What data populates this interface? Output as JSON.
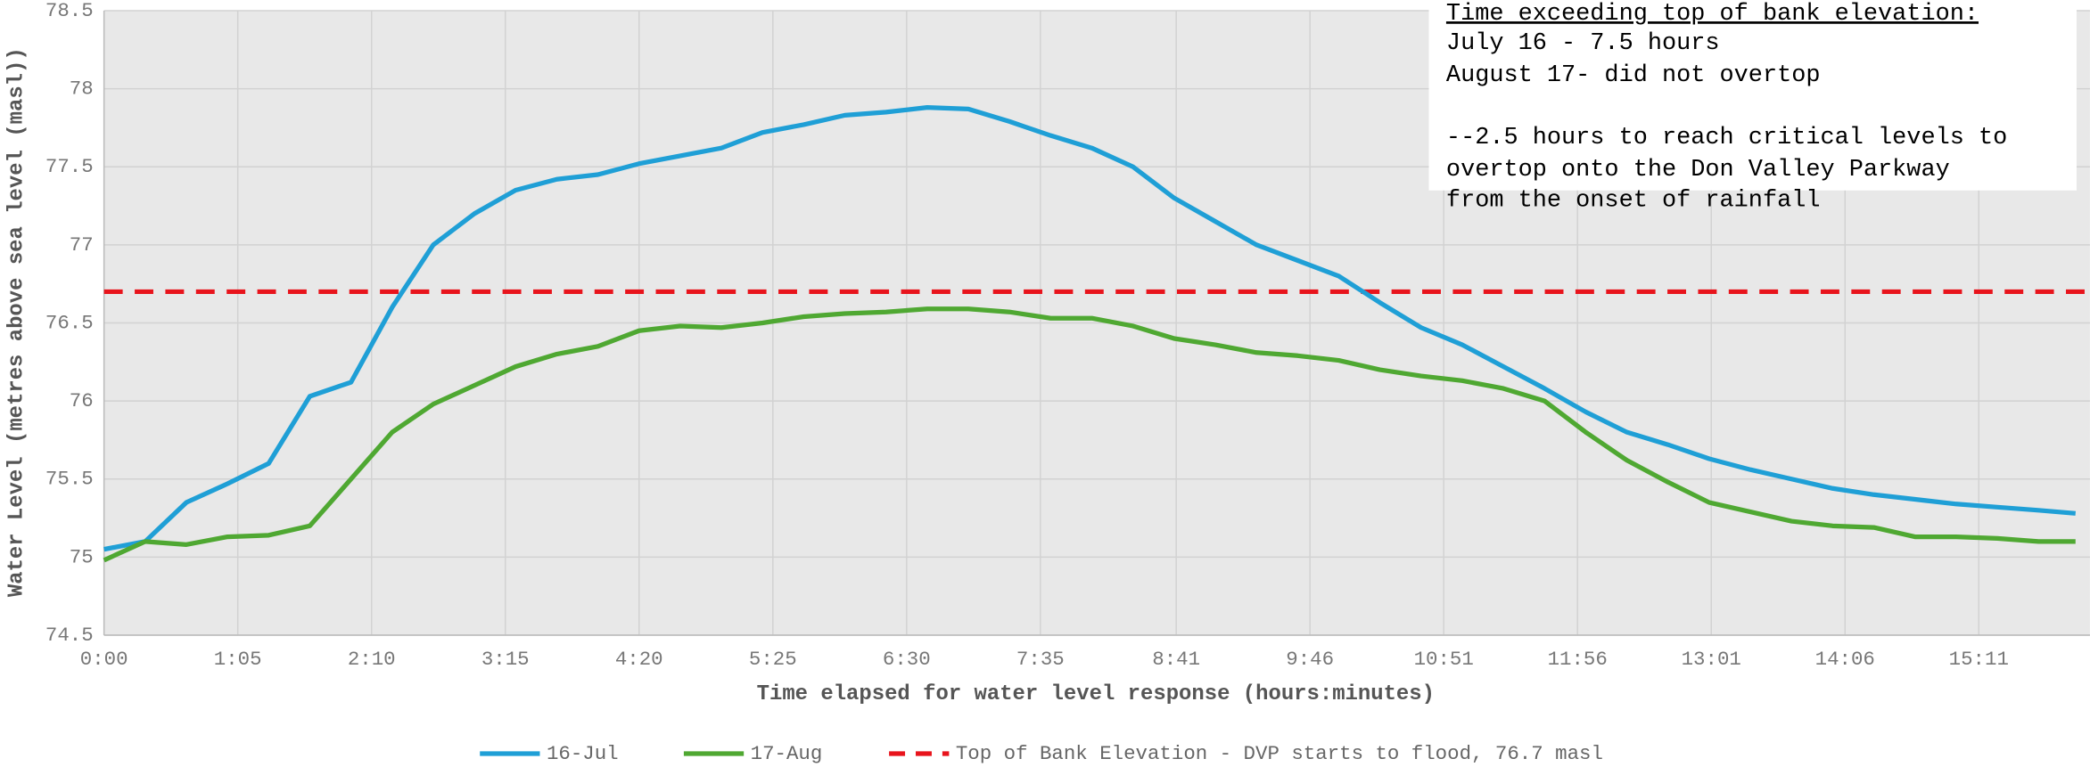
{
  "chart_data": {
    "type": "line",
    "xlabel": "Time elapsed for water level response (hours:minutes)",
    "ylabel": "Water Level (metres above sea level (masl))",
    "x": [
      0,
      20,
      40,
      60,
      80,
      100,
      120,
      140,
      160,
      180,
      200,
      220,
      240,
      260,
      280,
      300,
      320,
      340,
      360,
      380,
      400,
      420,
      440,
      460,
      480,
      500,
      520,
      540,
      560,
      580,
      600,
      620,
      640,
      660,
      680,
      700,
      720,
      740,
      760,
      780,
      800,
      820,
      840,
      860,
      880,
      900,
      920,
      940,
      958
    ],
    "series": [
      {
        "name": "16-Jul",
        "color": "#1f9fd6",
        "values": [
          75.05,
          75.1,
          75.35,
          75.47,
          75.6,
          76.03,
          76.12,
          76.6,
          77.0,
          77.2,
          77.35,
          77.42,
          77.45,
          77.52,
          77.57,
          77.62,
          77.72,
          77.77,
          77.83,
          77.85,
          77.88,
          77.87,
          77.79,
          77.7,
          77.62,
          77.5,
          77.3,
          77.15,
          77.0,
          76.9,
          76.8,
          76.63,
          76.47,
          76.36,
          76.22,
          76.08,
          75.93,
          75.8,
          75.72,
          75.63,
          75.56,
          75.5,
          75.44,
          75.4,
          75.37,
          75.34,
          75.32,
          75.3,
          75.28
        ]
      },
      {
        "name": "17-Aug",
        "color": "#4fa832",
        "values": [
          74.98,
          75.1,
          75.08,
          75.13,
          75.14,
          75.2,
          75.5,
          75.8,
          75.98,
          76.1,
          76.22,
          76.3,
          76.35,
          76.45,
          76.48,
          76.47,
          76.5,
          76.54,
          76.56,
          76.57,
          76.59,
          76.59,
          76.57,
          76.53,
          76.53,
          76.48,
          76.4,
          76.36,
          76.31,
          76.29,
          76.26,
          76.2,
          76.16,
          76.13,
          76.08,
          76.0,
          75.8,
          75.62,
          75.48,
          75.35,
          75.29,
          75.23,
          75.2,
          75.19,
          75.13,
          75.13,
          75.12,
          75.1,
          75.1
        ]
      }
    ],
    "threshold": {
      "name": "Top of Bank Elevation - DVP starts to flood, 76.7 masl",
      "value": 76.7,
      "color": "#e8141c"
    },
    "annotation": {
      "title": "Time exceeding top of bank elevation:",
      "lines": [
        "July 16 - 7.5 hours",
        "August 17- did not overtop",
        "--2.5 hours to reach critical levels to",
        "overtop onto the Don Valley Parkway",
        "from the onset of rainfall"
      ]
    },
    "xlim": [
      0,
      965
    ],
    "xticks": [
      {
        "value": 0,
        "label": "0:00"
      },
      {
        "value": 65,
        "label": "1:05"
      },
      {
        "value": 130,
        "label": "2:10"
      },
      {
        "value": 195,
        "label": "3:15"
      },
      {
        "value": 260,
        "label": "4:20"
      },
      {
        "value": 325,
        "label": "5:25"
      },
      {
        "value": 390,
        "label": "6:30"
      },
      {
        "value": 455,
        "label": "7:35"
      },
      {
        "value": 521,
        "label": "8:41"
      },
      {
        "value": 586,
        "label": "9:46"
      },
      {
        "value": 651,
        "label": "10:51"
      },
      {
        "value": 716,
        "label": "11:56"
      },
      {
        "value": 781,
        "label": "13:01"
      },
      {
        "value": 846,
        "label": "14:06"
      },
      {
        "value": 911,
        "label": "15:11"
      }
    ],
    "ylim": [
      74.5,
      78.5
    ],
    "yticks": [
      74.5,
      75,
      75.5,
      76,
      76.5,
      77,
      77.5,
      78,
      78.5
    ],
    "grid": true
  }
}
